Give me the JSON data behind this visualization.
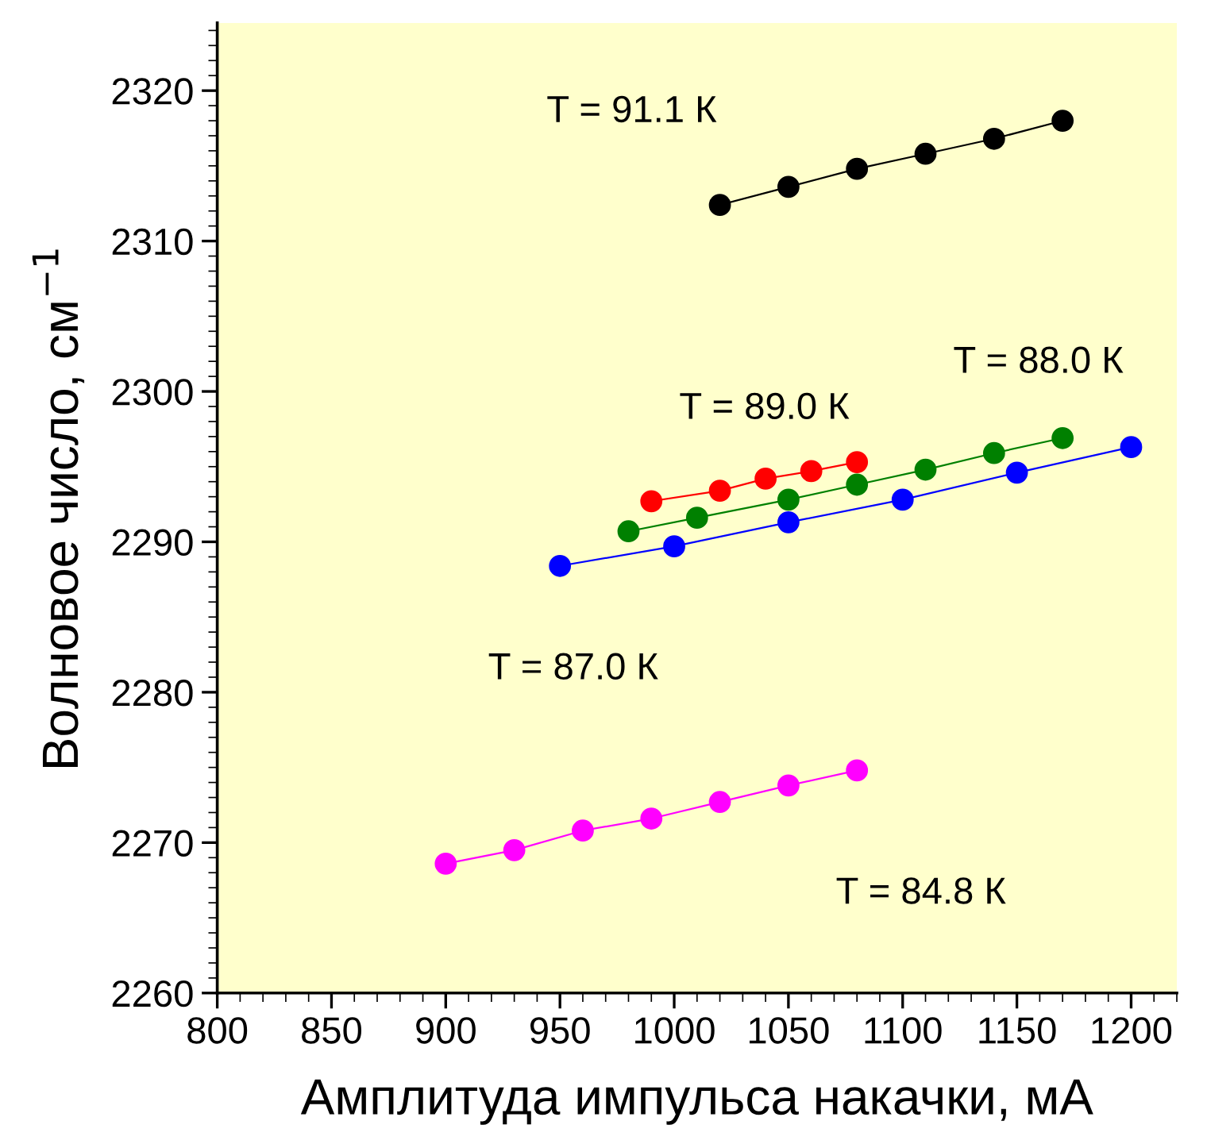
{
  "chart_data": {
    "type": "line",
    "xlabel": "Амплитуда импульса накачки, мА",
    "ylabel": "Волновое число, см$^{−1}$",
    "xlim": [
      800,
      1220
    ],
    "xticks": [
      800,
      850,
      900,
      950,
      1000,
      1050,
      1100,
      1150,
      1200
    ],
    "ylim": [
      2260,
      2324.5
    ],
    "yticks": [
      2260,
      2270,
      2280,
      2290,
      2300,
      2310,
      2320
    ],
    "grid": false,
    "legend": false,
    "marker": "circle",
    "line_style": "solid",
    "series": [
      {
        "name": "T = 91.1 К",
        "color": "#000000",
        "x": [
          1020,
          1050,
          1080,
          1110,
          1140,
          1170
        ],
        "values": [
          2312.4,
          2313.6,
          2314.8,
          2315.8,
          2316.8,
          2318.0
        ]
      },
      {
        "name": "T = 89.0 К",
        "color": "#ff0000",
        "x": [
          990,
          1020,
          1040,
          1060,
          1080
        ],
        "values": [
          2292.7,
          2293.4,
          2294.2,
          2294.7,
          2295.3
        ]
      },
      {
        "name": "T = 88.0 К",
        "color": "#008000",
        "x": [
          980,
          1010,
          1050,
          1080,
          1110,
          1140,
          1170
        ],
        "values": [
          2290.7,
          2291.6,
          2292.8,
          2293.8,
          2294.8,
          2295.9,
          2296.9
        ]
      },
      {
        "name": "T = 87.0 К",
        "color": "#0000ff",
        "x": [
          950,
          1000,
          1050,
          1100,
          1150,
          1200
        ],
        "values": [
          2288.4,
          2289.7,
          2291.3,
          2292.8,
          2294.6,
          2296.3
        ]
      },
      {
        "name": "T = 84.8 К",
        "color": "#ff00ff",
        "x": [
          900,
          930,
          960,
          990,
          1020,
          1050,
          1080
        ],
        "values": [
          2268.6,
          2269.5,
          2270.8,
          2271.6,
          2272.7,
          2273.8,
          2274.8
        ]
      }
    ]
  }
}
